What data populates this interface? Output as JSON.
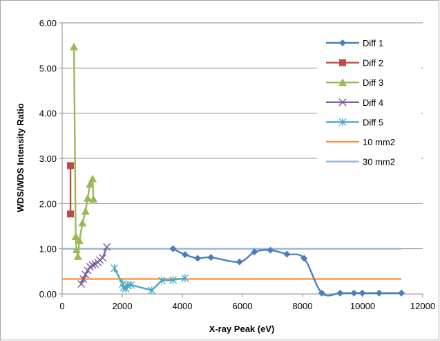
{
  "chart_data": {
    "type": "line",
    "title": "",
    "xlabel": "X-ray Peak (eV)",
    "ylabel": "WDS/WDS Intensity Ratio",
    "xlim": [
      0,
      12000
    ],
    "ylim": [
      0,
      6
    ],
    "x_ticks": [
      "0",
      "2000",
      "4000",
      "6000",
      "8000",
      "10000",
      "12000"
    ],
    "y_ticks": [
      "0.00",
      "1.00",
      "2.00",
      "3.00",
      "4.00",
      "5.00",
      "6.00"
    ],
    "grid": "horizontal",
    "legend_position": "right",
    "series": [
      {
        "name": "Diff 1",
        "color": "#4a7ebb",
        "marker": "diamond",
        "smooth": true,
        "points": [
          [
            3690,
            1.0
          ],
          [
            4090,
            0.87
          ],
          [
            4510,
            0.79
          ],
          [
            4950,
            0.81
          ],
          [
            5900,
            0.71
          ],
          [
            6400,
            0.93
          ],
          [
            6930,
            0.97
          ],
          [
            7480,
            0.88
          ],
          [
            8050,
            0.79
          ],
          [
            8640,
            0.02
          ],
          [
            9250,
            0.02
          ],
          [
            9710,
            0.02
          ],
          [
            9990,
            0.02
          ],
          [
            10550,
            0.02
          ],
          [
            11290,
            0.02
          ]
        ]
      },
      {
        "name": "Diff 2",
        "color": "#be4b48",
        "marker": "square",
        "smooth": false,
        "points": [
          [
            277,
            1.77
          ],
          [
            277,
            2.84
          ]
        ]
      },
      {
        "name": "Diff 3",
        "color": "#98b954",
        "marker": "triangle",
        "smooth": false,
        "points": [
          [
            392,
            5.47
          ],
          [
            452,
            1.27
          ],
          [
            480,
            0.98
          ],
          [
            525,
            0.83
          ],
          [
            572,
            1.18
          ],
          [
            677,
            1.57
          ],
          [
            776,
            1.83
          ],
          [
            849,
            2.12
          ],
          [
            929,
            2.43
          ],
          [
            1012,
            2.55
          ],
          [
            1041,
            2.1
          ]
        ]
      },
      {
        "name": "Diff 4",
        "color": "#7d60a0",
        "marker": "x",
        "smooth": false,
        "points": [
          [
            637,
            0.22
          ],
          [
            705,
            0.33
          ],
          [
            776,
            0.43
          ],
          [
            852,
            0.52
          ],
          [
            929,
            0.6
          ],
          [
            1012,
            0.64
          ],
          [
            1100,
            0.66
          ],
          [
            1188,
            0.7
          ],
          [
            1254,
            0.75
          ],
          [
            1350,
            0.8
          ],
          [
            1486,
            1.04
          ]
        ]
      },
      {
        "name": "Diff 5",
        "color": "#46aac5",
        "marker": "asterisk",
        "smooth": false,
        "points": [
          [
            1740,
            0.57
          ],
          [
            2013,
            0.22
          ],
          [
            2042,
            0.14
          ],
          [
            2120,
            0.12
          ],
          [
            2166,
            0.19
          ],
          [
            2293,
            0.2
          ],
          [
            2984,
            0.08
          ],
          [
            3313,
            0.3
          ],
          [
            3691,
            0.31
          ],
          [
            4090,
            0.35
          ]
        ]
      },
      {
        "name": "10 mm2",
        "color": "#f79646",
        "marker": "none",
        "smooth": false,
        "points": [
          [
            0,
            0.33
          ],
          [
            11290,
            0.33
          ]
        ]
      },
      {
        "name": "30 mm2",
        "color": "#95b3d7",
        "marker": "none",
        "smooth": false,
        "points": [
          [
            0,
            1.0
          ],
          [
            11290,
            1.0
          ]
        ]
      }
    ]
  }
}
